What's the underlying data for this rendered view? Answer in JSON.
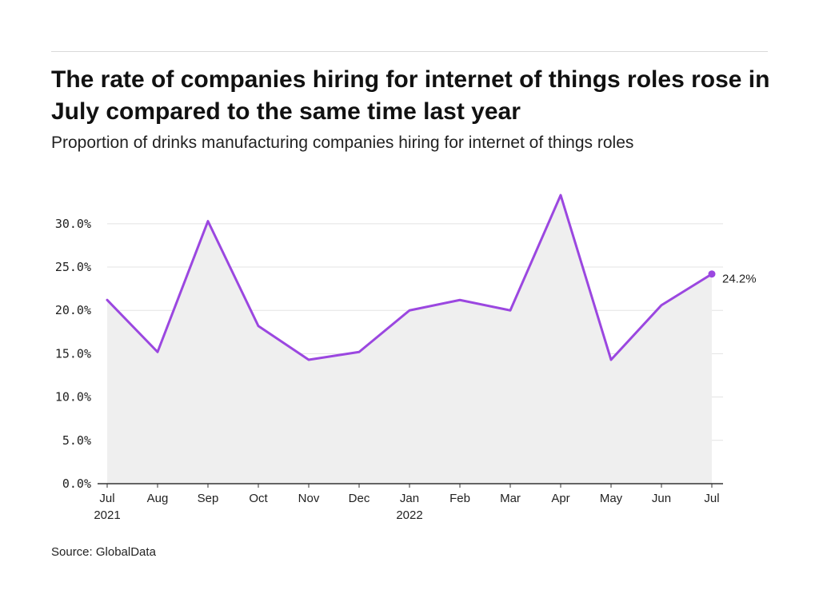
{
  "header": {
    "title": "The rate of companies hiring for internet of things roles rose in July compared to the same time last year",
    "subtitle": "Proportion of drinks manufacturing companies hiring for internet of things roles"
  },
  "footer": {
    "source": "Source: GlobalData"
  },
  "colors": {
    "line": "#9b47e0",
    "area": "#efefef",
    "grid": "#e3e3e3",
    "axis": "#333333"
  },
  "chart_data": {
    "type": "area",
    "title": "The rate of companies hiring for internet of things roles rose in July compared to the same time last year",
    "subtitle": "Proportion of drinks manufacturing companies hiring for internet of things roles",
    "categories": [
      [
        "Jul",
        "2021"
      ],
      [
        "Aug",
        ""
      ],
      [
        "Sep",
        ""
      ],
      [
        "Oct",
        ""
      ],
      [
        "Nov",
        ""
      ],
      [
        "Dec",
        ""
      ],
      [
        "Jan",
        "2022"
      ],
      [
        "Feb",
        ""
      ],
      [
        "Mar",
        ""
      ],
      [
        "Apr",
        ""
      ],
      [
        "May",
        ""
      ],
      [
        "Jun",
        ""
      ],
      [
        "Jul",
        ""
      ]
    ],
    "values": [
      21.2,
      15.2,
      30.3,
      18.2,
      14.3,
      15.2,
      20.0,
      21.2,
      20.0,
      33.3,
      14.3,
      20.6,
      24.2
    ],
    "end_label": "24.2%",
    "yticks": [
      {
        "value": 0,
        "label": "0.0%"
      },
      {
        "value": 5,
        "label": "5.0%"
      },
      {
        "value": 10,
        "label": "10.0%"
      },
      {
        "value": 15,
        "label": "15.0%"
      },
      {
        "value": 20,
        "label": "20.0%"
      },
      {
        "value": 25,
        "label": "25.0%"
      },
      {
        "value": 30,
        "label": "30.0%"
      }
    ],
    "ylim": [
      0,
      34.6
    ],
    "grid": true,
    "legend": "none"
  }
}
